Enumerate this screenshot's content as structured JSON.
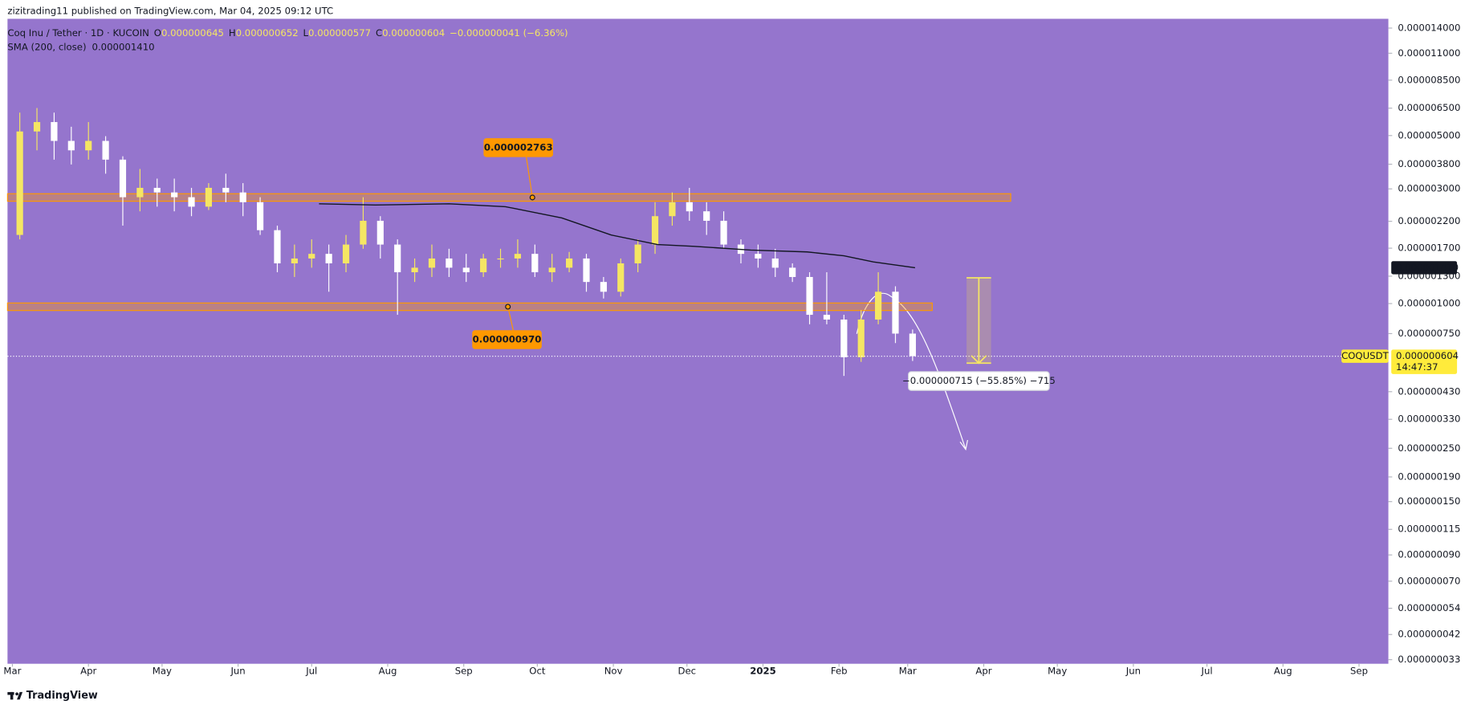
{
  "chart_data": {
    "type": "candlestick",
    "publisher": "zizitrading11 published on TradingView.com, Mar 04, 2025 09:12 UTC",
    "title": "Coq Inu / Tether · 1D · KUCOIN",
    "ohlc": [
      {
        "prefix": "O",
        "value": 6.45e-07,
        "label": "0.000000645"
      },
      {
        "prefix": "H",
        "value": 6.52e-07,
        "label": "0.000000652"
      },
      {
        "prefix": "L",
        "value": 5.77e-07,
        "label": "0.000000577"
      },
      {
        "prefix": "C",
        "value": 6.04e-07,
        "label": "0.000000604"
      }
    ],
    "change_label": "−0.000000041 (−6.36%)",
    "brand": "TradingView",
    "background": "#9575cd",
    "up_color": "#f5e663",
    "down_color": "#ffffff",
    "log_scale": true,
    "xlim": [
      "2024-02-28",
      "2025-09-13"
    ],
    "xticks": [
      {
        "value": "2024-03-01",
        "label": "Mar"
      },
      {
        "value": "2024-04-01",
        "label": "Apr"
      },
      {
        "value": "2024-05-01",
        "label": "May"
      },
      {
        "value": "2024-06-01",
        "label": "Jun"
      },
      {
        "value": "2024-07-01",
        "label": "Jul"
      },
      {
        "value": "2024-08-01",
        "label": "Aug"
      },
      {
        "value": "2024-09-01",
        "label": "Sep"
      },
      {
        "value": "2024-10-01",
        "label": "Oct"
      },
      {
        "value": "2024-11-01",
        "label": "Nov"
      },
      {
        "value": "2024-12-01",
        "label": "Dec"
      },
      {
        "value": "2025-01-01",
        "label": "2025"
      },
      {
        "value": "2025-02-01",
        "label": "Feb"
      },
      {
        "value": "2025-03-01",
        "label": "Mar"
      },
      {
        "value": "2025-04-01",
        "label": "Apr"
      },
      {
        "value": "2025-05-01",
        "label": "May"
      },
      {
        "value": "2025-06-01",
        "label": "Jun"
      },
      {
        "value": "2025-07-01",
        "label": "Jul"
      },
      {
        "value": "2025-08-01",
        "label": "Aug"
      },
      {
        "value": "2025-09-01",
        "label": "Sep"
      }
    ],
    "ylim": [
      3.17e-08,
      1.53e-05
    ],
    "yticks": [
      {
        "value": 1.4e-05,
        "label": "0.000014000"
      },
      {
        "value": 1.1e-05,
        "label": "0.000011000"
      },
      {
        "value": 8.5e-06,
        "label": "0.000008500"
      },
      {
        "value": 6.5e-06,
        "label": "0.000006500"
      },
      {
        "value": 5e-06,
        "label": "0.000005000"
      },
      {
        "value": 3.8e-06,
        "label": "0.000003800"
      },
      {
        "value": 3e-06,
        "label": "0.000003000"
      },
      {
        "value": 2.2e-06,
        "label": "0.000002200"
      },
      {
        "value": 1.7e-06,
        "label": "0.000001700"
      },
      {
        "value": 1.3e-06,
        "label": "0.000001300"
      },
      {
        "value": 1e-06,
        "label": "0.000001000"
      },
      {
        "value": 7.5e-07,
        "label": "0.000000750"
      },
      {
        "value": 4.3e-07,
        "label": "0.000000430"
      },
      {
        "value": 3.3e-07,
        "label": "0.000000330"
      },
      {
        "value": 2.5e-07,
        "label": "0.000000250"
      },
      {
        "value": 1.9e-07,
        "label": "0.000000190"
      },
      {
        "value": 1.5e-07,
        "label": "0.000000150"
      },
      {
        "value": 1.15e-07,
        "label": "0.000000115"
      },
      {
        "value": 9e-08,
        "label": "0.000000090"
      },
      {
        "value": 7e-08,
        "label": "0.000000070"
      },
      {
        "value": 5.4e-08,
        "label": "0.000000054"
      },
      {
        "value": 4.2e-08,
        "label": "0.000000042"
      },
      {
        "value": 3.3e-08,
        "label": "0.000000033"
      }
    ],
    "x": [
      "2024-03-04",
      "2024-03-11",
      "2024-03-18",
      "2024-03-25",
      "2024-04-01",
      "2024-04-08",
      "2024-04-15",
      "2024-04-22",
      "2024-04-29",
      "2024-05-06",
      "2024-05-13",
      "2024-05-20",
      "2024-05-27",
      "2024-06-03",
      "2024-06-10",
      "2024-06-17",
      "2024-06-24",
      "2024-07-01",
      "2024-07-08",
      "2024-07-15",
      "2024-07-22",
      "2024-07-29",
      "2024-08-05",
      "2024-08-12",
      "2024-08-19",
      "2024-08-26",
      "2024-09-02",
      "2024-09-09",
      "2024-09-16",
      "2024-09-23",
      "2024-09-30",
      "2024-10-07",
      "2024-10-14",
      "2024-10-21",
      "2024-10-28",
      "2024-11-04",
      "2024-11-11",
      "2024-11-18",
      "2024-11-25",
      "2024-12-02",
      "2024-12-09",
      "2024-12-16",
      "2024-12-23",
      "2024-12-30",
      "2025-01-06",
      "2025-01-13",
      "2025-01-20",
      "2025-01-27",
      "2025-02-03",
      "2025-02-10",
      "2025-02-17",
      "2025-02-24",
      "2025-03-03"
    ],
    "open": [
      1.93e-06,
      5.2e-06,
      5.69e-06,
      4.75e-06,
      4.34e-06,
      4.75e-06,
      3.97e-06,
      2.77e-06,
      3.03e-06,
      2.9e-06,
      2.77e-06,
      2.53e-06,
      3.03e-06,
      2.9e-06,
      2.64e-06,
      2.02e-06,
      1.47e-06,
      1.54e-06,
      1.61e-06,
      1.47e-06,
      1.76e-06,
      2.21e-06,
      1.76e-06,
      1.35e-06,
      1.41e-06,
      1.54e-06,
      1.41e-06,
      1.35e-06,
      1.54e-06,
      1.54e-06,
      1.61e-06,
      1.35e-06,
      1.41e-06,
      1.54e-06,
      1.23e-06,
      1.12e-06,
      1.47e-06,
      1.76e-06,
      2.31e-06,
      2.64e-06,
      2.42e-06,
      2.21e-06,
      1.76e-06,
      1.61e-06,
      1.54e-06,
      1.41e-06,
      1.29e-06,
      8.98e-07,
      8.58e-07,
      5.98e-07,
      8.58e-07,
      1.12e-06,
      7.5e-07
    ],
    "high": [
      6.23e-06,
      6.51e-06,
      6.23e-06,
      5.44e-06,
      5.69e-06,
      4.97e-06,
      4.1e-06,
      3.63e-06,
      3.31e-06,
      3.31e-06,
      3.03e-06,
      3.17e-06,
      3.47e-06,
      3.17e-06,
      2.77e-06,
      2.11e-06,
      1.76e-06,
      1.85e-06,
      1.76e-06,
      1.93e-06,
      2.77e-06,
      2.31e-06,
      1.85e-06,
      1.54e-06,
      1.76e-06,
      1.69e-06,
      1.61e-06,
      1.61e-06,
      1.69e-06,
      1.85e-06,
      1.76e-06,
      1.61e-06,
      1.64e-06,
      1.61e-06,
      1.29e-06,
      1.54e-06,
      1.85e-06,
      2.64e-06,
      2.9e-06,
      3.03e-06,
      2.64e-06,
      2.42e-06,
      1.85e-06,
      1.76e-06,
      1.69e-06,
      1.47e-06,
      1.35e-06,
      1.35e-06,
      8.98e-07,
      9.39e-07,
      1.35e-06,
      1.18e-06,
      7.8e-07
    ],
    "low": [
      1.85e-06,
      4.34e-06,
      3.97e-06,
      3.79e-06,
      3.97e-06,
      3.47e-06,
      2.11e-06,
      2.42e-06,
      2.53e-06,
      2.42e-06,
      2.31e-06,
      2.45e-06,
      2.64e-06,
      2.31e-06,
      1.93e-06,
      1.35e-06,
      1.29e-06,
      1.41e-06,
      1.12e-06,
      1.35e-06,
      1.69e-06,
      1.54e-06,
      8.98e-07,
      1.23e-06,
      1.29e-06,
      1.29e-06,
      1.23e-06,
      1.29e-06,
      1.41e-06,
      1.41e-06,
      1.29e-06,
      1.23e-06,
      1.35e-06,
      1.12e-06,
      1.05e-06,
      1.07e-06,
      1.35e-06,
      1.61e-06,
      2.11e-06,
      2.21e-06,
      1.93e-06,
      1.69e-06,
      1.47e-06,
      1.41e-06,
      1.29e-06,
      1.23e-06,
      8.2e-07,
      8.2e-07,
      5e-07,
      5.72e-07,
      8.2e-07,
      6.85e-07,
      5.77e-07
    ],
    "close": [
      5.2e-06,
      5.69e-06,
      4.75e-06,
      4.34e-06,
      4.75e-06,
      3.97e-06,
      2.77e-06,
      3.03e-06,
      2.9e-06,
      2.77e-06,
      2.53e-06,
      3.03e-06,
      2.9e-06,
      2.64e-06,
      2.02e-06,
      1.47e-06,
      1.54e-06,
      1.61e-06,
      1.47e-06,
      1.76e-06,
      2.21e-06,
      1.76e-06,
      1.35e-06,
      1.41e-06,
      1.54e-06,
      1.41e-06,
      1.35e-06,
      1.54e-06,
      1.54e-06,
      1.61e-06,
      1.35e-06,
      1.41e-06,
      1.54e-06,
      1.23e-06,
      1.12e-06,
      1.47e-06,
      1.76e-06,
      2.31e-06,
      2.64e-06,
      2.42e-06,
      2.21e-06,
      1.76e-06,
      1.61e-06,
      1.54e-06,
      1.41e-06,
      1.29e-06,
      8.98e-07,
      8.58e-07,
      5.98e-07,
      8.58e-07,
      1.12e-06,
      7.5e-07,
      6.04e-07
    ],
    "sma": {
      "name": "SMA (200, close)",
      "color": "#131722",
      "last_label": "0.000001410",
      "x": [
        "2024-07-04",
        "2024-07-27",
        "2024-08-26",
        "2024-09-18",
        "2024-10-11",
        "2024-10-31",
        "2024-11-19",
        "2024-12-04",
        "2024-12-27",
        "2025-01-19",
        "2025-02-03",
        "2025-02-15",
        "2025-03-04"
      ],
      "values": [
        2.6e-06,
        2.57e-06,
        2.6e-06,
        2.53e-06,
        2.27e-06,
        1.93e-06,
        1.76e-06,
        1.73e-06,
        1.67e-06,
        1.64e-06,
        1.58e-06,
        1.49e-06,
        1.41e-06
      ]
    },
    "last_price": {
      "value": 6.04e-07,
      "label": "0.000000604",
      "symbol": "COQUSDT",
      "countdown": "14:47:37"
    },
    "levels": [
      {
        "value": 2.763e-06,
        "label": "0.000002763",
        "end": "2025-04-12",
        "anchor": "2024-09-29"
      },
      {
        "value": 9.7e-07,
        "label": "0.000000970",
        "end": "2025-03-11",
        "anchor": "2024-09-19"
      }
    ],
    "measure": {
      "from": 1.28e-06,
      "to": 5.65e-07,
      "start": "2025-03-25",
      "end": "2025-04-04",
      "label": "−0.000000715 (−55.85%) −715"
    }
  }
}
